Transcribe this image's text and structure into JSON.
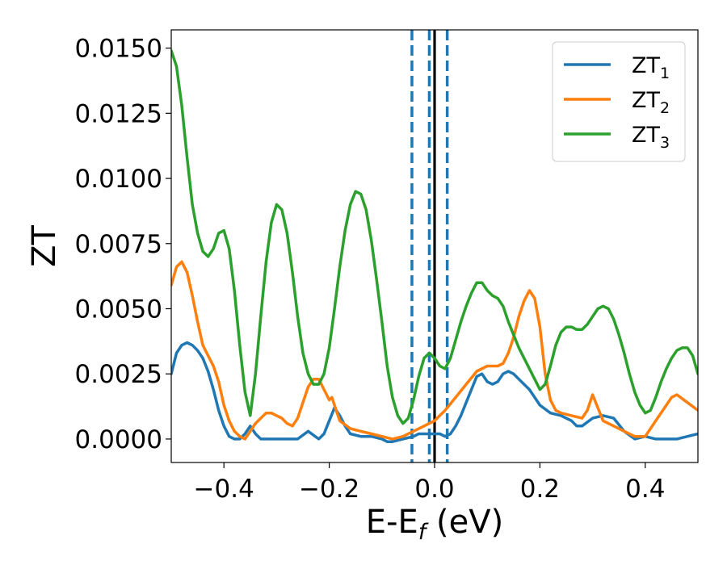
{
  "chart_data": {
    "type": "line",
    "title": "",
    "xlabel": "E-E",
    "xlabel_sub": "f",
    "xlabel_unit": "(eV)",
    "ylabel": "ZT",
    "xlim": [
      -0.5,
      0.5
    ],
    "ylim": [
      -0.0009,
      0.0157
    ],
    "xticks": [
      -0.4,
      -0.2,
      0.0,
      0.2,
      0.4
    ],
    "xtick_labels": [
      "−0.4",
      "−0.2",
      "0.0",
      "0.2",
      "0.4"
    ],
    "yticks": [
      0.0,
      0.0025,
      0.005,
      0.0075,
      0.01,
      0.0125,
      0.015
    ],
    "ytick_labels": [
      "0.0000",
      "0.0025",
      "0.0050",
      "0.0075",
      "0.0100",
      "0.0125",
      "0.0150"
    ],
    "grid": false,
    "legend_position": "top-right",
    "vlines": [
      {
        "x": -0.043,
        "style": "dashed",
        "color": "#1f77b4"
      },
      {
        "x": -0.01,
        "style": "dashed",
        "color": "#1f77b4"
      },
      {
        "x": 0.0,
        "style": "solid",
        "color": "#000000"
      },
      {
        "x": 0.024,
        "style": "dashed",
        "color": "#1f77b4"
      }
    ],
    "series": [
      {
        "name": "ZT",
        "name_sub": "1",
        "color": "#1f77b4",
        "x": [
          -0.5,
          -0.49,
          -0.48,
          -0.47,
          -0.46,
          -0.45,
          -0.44,
          -0.43,
          -0.42,
          -0.41,
          -0.4,
          -0.39,
          -0.38,
          -0.37,
          -0.36,
          -0.35,
          -0.34,
          -0.33,
          -0.32,
          -0.3,
          -0.28,
          -0.26,
          -0.24,
          -0.22,
          -0.21,
          -0.2,
          -0.19,
          -0.18,
          -0.17,
          -0.16,
          -0.14,
          -0.12,
          -0.1,
          -0.09,
          -0.08,
          -0.06,
          -0.04,
          -0.03,
          -0.02,
          -0.01,
          0.0,
          0.01,
          0.02,
          0.03,
          0.04,
          0.05,
          0.06,
          0.07,
          0.08,
          0.09,
          0.1,
          0.11,
          0.12,
          0.13,
          0.14,
          0.15,
          0.16,
          0.17,
          0.18,
          0.19,
          0.2,
          0.22,
          0.24,
          0.26,
          0.27,
          0.28,
          0.3,
          0.32,
          0.34,
          0.36,
          0.38,
          0.4,
          0.42,
          0.44,
          0.46,
          0.48,
          0.5
        ],
        "y": [
          0.0025,
          0.0033,
          0.0036,
          0.0037,
          0.0036,
          0.0034,
          0.0031,
          0.0026,
          0.0019,
          0.0011,
          0.0005,
          0.0001,
          0.0,
          0.0,
          0.0002,
          0.0005,
          0.0002,
          0.0,
          0.0,
          0.0,
          0.0,
          0.0,
          0.0003,
          0.0,
          0.0002,
          0.0007,
          0.0012,
          0.0009,
          0.0005,
          0.0002,
          0.0001,
          0.0001,
          0.0,
          -0.0001,
          -0.0001,
          0.0,
          0.0001,
          0.0002,
          0.0002,
          0.0002,
          0.0002,
          0.0002,
          0.0001,
          0.0002,
          0.0005,
          0.0009,
          0.0014,
          0.0019,
          0.0024,
          0.0025,
          0.0022,
          0.0021,
          0.0022,
          0.0025,
          0.0026,
          0.0025,
          0.0023,
          0.0021,
          0.0019,
          0.0016,
          0.0013,
          0.001,
          0.0009,
          0.0007,
          0.0005,
          0.0005,
          0.0008,
          0.0009,
          0.0008,
          0.0003,
          0.0,
          0.0001,
          0.0,
          0.0,
          0.0,
          0.0001,
          0.0002
        ]
      },
      {
        "name": "ZT",
        "name_sub": "2",
        "color": "#ff7f0e",
        "x": [
          -0.5,
          -0.49,
          -0.48,
          -0.47,
          -0.46,
          -0.45,
          -0.44,
          -0.43,
          -0.42,
          -0.41,
          -0.4,
          -0.39,
          -0.38,
          -0.37,
          -0.36,
          -0.35,
          -0.34,
          -0.33,
          -0.32,
          -0.31,
          -0.3,
          -0.29,
          -0.28,
          -0.27,
          -0.26,
          -0.25,
          -0.24,
          -0.23,
          -0.22,
          -0.21,
          -0.2,
          -0.195,
          -0.19,
          -0.18,
          -0.16,
          -0.14,
          -0.12,
          -0.1,
          -0.08,
          -0.06,
          -0.04,
          -0.02,
          0.0,
          0.02,
          0.04,
          0.06,
          0.08,
          0.1,
          0.12,
          0.13,
          0.14,
          0.15,
          0.16,
          0.17,
          0.18,
          0.19,
          0.2,
          0.21,
          0.22,
          0.23,
          0.24,
          0.26,
          0.28,
          0.29,
          0.3,
          0.31,
          0.32,
          0.34,
          0.36,
          0.38,
          0.4,
          0.42,
          0.44,
          0.45,
          0.46,
          0.48,
          0.5
        ],
        "y": [
          0.0059,
          0.0066,
          0.0068,
          0.0064,
          0.0055,
          0.0045,
          0.0036,
          0.0032,
          0.0028,
          0.0022,
          0.0013,
          0.0007,
          0.0003,
          0.0001,
          0.0,
          0.0003,
          0.0006,
          0.0008,
          0.001,
          0.001,
          0.0009,
          0.0008,
          0.0006,
          0.0005,
          0.0008,
          0.0014,
          0.002,
          0.0023,
          0.0023,
          0.0019,
          0.0015,
          0.0016,
          0.0013,
          0.0007,
          0.0004,
          0.0003,
          0.0002,
          0.0001,
          0.0,
          0.0001,
          0.0003,
          0.0005,
          0.0007,
          0.0011,
          0.0016,
          0.0021,
          0.0026,
          0.0028,
          0.0028,
          0.0029,
          0.0033,
          0.0039,
          0.0047,
          0.0053,
          0.0057,
          0.0054,
          0.0043,
          0.0025,
          0.0015,
          0.0011,
          0.001,
          0.0009,
          0.0008,
          0.0011,
          0.0017,
          0.0012,
          0.0007,
          0.0005,
          0.0003,
          0.0001,
          0.0001,
          0.0007,
          0.0013,
          0.0016,
          0.0017,
          0.0014,
          0.0011
        ]
      },
      {
        "name": "ZT",
        "name_sub": "3",
        "color": "#2ca02c",
        "x": [
          -0.5,
          -0.49,
          -0.48,
          -0.47,
          -0.46,
          -0.45,
          -0.44,
          -0.43,
          -0.42,
          -0.41,
          -0.4,
          -0.39,
          -0.38,
          -0.37,
          -0.36,
          -0.35,
          -0.34,
          -0.33,
          -0.32,
          -0.31,
          -0.3,
          -0.29,
          -0.28,
          -0.27,
          -0.26,
          -0.25,
          -0.24,
          -0.23,
          -0.22,
          -0.21,
          -0.2,
          -0.19,
          -0.18,
          -0.17,
          -0.16,
          -0.15,
          -0.14,
          -0.13,
          -0.12,
          -0.11,
          -0.1,
          -0.09,
          -0.08,
          -0.07,
          -0.06,
          -0.05,
          -0.04,
          -0.03,
          -0.02,
          -0.01,
          0.0,
          0.01,
          0.02,
          0.03,
          0.04,
          0.05,
          0.06,
          0.07,
          0.08,
          0.09,
          0.1,
          0.11,
          0.12,
          0.13,
          0.14,
          0.15,
          0.16,
          0.17,
          0.18,
          0.19,
          0.2,
          0.21,
          0.22,
          0.23,
          0.24,
          0.25,
          0.26,
          0.27,
          0.28,
          0.29,
          0.3,
          0.31,
          0.32,
          0.33,
          0.34,
          0.35,
          0.36,
          0.37,
          0.38,
          0.39,
          0.4,
          0.41,
          0.42,
          0.43,
          0.44,
          0.45,
          0.46,
          0.47,
          0.48,
          0.49,
          0.5
        ],
        "y": [
          0.0149,
          0.0143,
          0.0128,
          0.0108,
          0.009,
          0.0079,
          0.0072,
          0.007,
          0.0073,
          0.0079,
          0.008,
          0.0073,
          0.0057,
          0.0036,
          0.0018,
          0.0009,
          0.0025,
          0.0047,
          0.0068,
          0.0083,
          0.009,
          0.0088,
          0.0079,
          0.0064,
          0.0047,
          0.0033,
          0.0025,
          0.0021,
          0.0021,
          0.0025,
          0.0035,
          0.005,
          0.0066,
          0.008,
          0.009,
          0.0095,
          0.0094,
          0.0088,
          0.0076,
          0.0061,
          0.0045,
          0.0028,
          0.0016,
          0.0009,
          0.0006,
          0.0008,
          0.0015,
          0.0024,
          0.0031,
          0.0033,
          0.0031,
          0.0028,
          0.0027,
          0.0031,
          0.0038,
          0.0045,
          0.0051,
          0.0056,
          0.006,
          0.006,
          0.0057,
          0.0055,
          0.0054,
          0.0051,
          0.0045,
          0.004,
          0.0035,
          0.0031,
          0.0027,
          0.0023,
          0.0019,
          0.0021,
          0.0028,
          0.0036,
          0.0041,
          0.0043,
          0.0043,
          0.0042,
          0.0042,
          0.0044,
          0.0047,
          0.005,
          0.0051,
          0.005,
          0.0046,
          0.004,
          0.0033,
          0.0025,
          0.0018,
          0.0013,
          0.001,
          0.0011,
          0.0016,
          0.0022,
          0.0027,
          0.0031,
          0.0034,
          0.0035,
          0.0035,
          0.0032,
          0.0025
        ]
      }
    ]
  }
}
